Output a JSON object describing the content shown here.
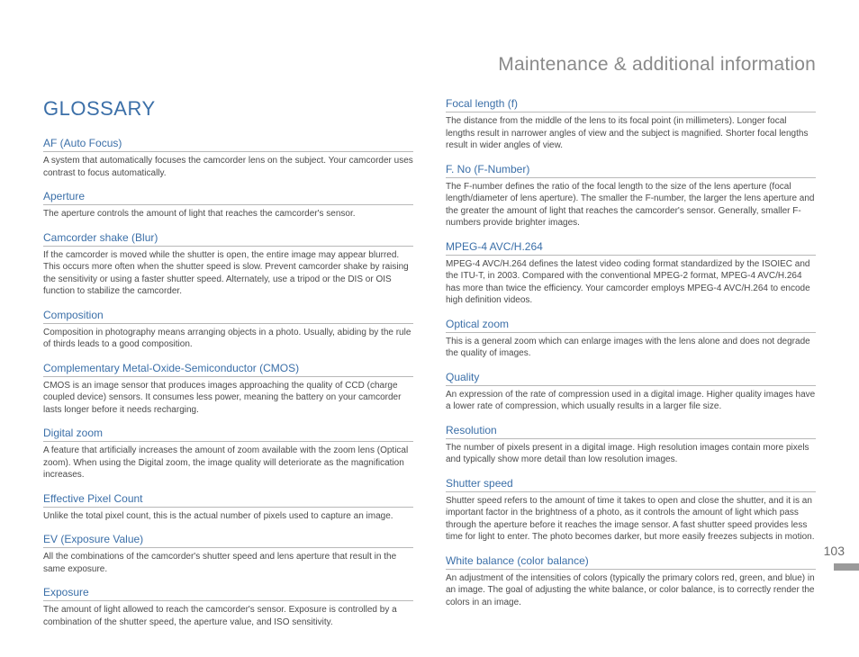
{
  "header_title": "Maintenance & additional information",
  "section_title": "GLOSSARY",
  "page_number": "103",
  "left_entries": [
    {
      "term": "AF (Auto Focus)",
      "def": "A system that automatically focuses the camcorder lens on the subject. Your camcorder uses contrast to focus automatically."
    },
    {
      "term": "Aperture",
      "def": "The aperture controls the amount of light that reaches the camcorder's sensor."
    },
    {
      "term": "Camcorder shake (Blur)",
      "def": "If the camcorder is moved while the shutter is open, the entire image may appear blurred. This occurs more often when the shutter speed is slow. Prevent camcorder shake by raising the sensitivity or using a faster shutter speed. Alternately, use a tripod or the DIS or OIS function to stabilize the camcorder."
    },
    {
      "term": "Composition",
      "def": "Composition in photography means arranging objects in a photo. Usually, abiding by the rule of thirds leads to a good composition."
    },
    {
      "term": "Complementary Metal-Oxide-Semiconductor (CMOS)",
      "def": "CMOS is an image sensor that produces images approaching the quality of CCD (charge coupled device) sensors. It consumes less power, meaning the battery on your camcorder lasts longer before it needs recharging."
    },
    {
      "term": "Digital zoom",
      "def": "A feature that artificially increases the amount of zoom available with the zoom lens (Optical zoom). When using the Digital zoom, the image quality will deteriorate as the magnification increases."
    },
    {
      "term": "Effective Pixel Count",
      "def": "Unlike the total pixel count, this is the actual number of pixels used to capture an image."
    },
    {
      "term": "EV (Exposure Value)",
      "def": "All the combinations of the camcorder's shutter speed and lens aperture that result in the same exposure."
    },
    {
      "term": "Exposure",
      "def": "The amount of light allowed to reach the camcorder's sensor. Exposure is controlled by a combination of the shutter speed, the aperture value, and ISO sensitivity."
    }
  ],
  "right_entries": [
    {
      "term": "Focal length (f)",
      "def": "The distance from the middle of the lens to its focal point (in millimeters). Longer focal lengths result in narrower angles of view and the subject is magnified. Shorter focal lengths result in wider angles of view."
    },
    {
      "term": "F. No (F-Number)",
      "def": "The F-number defines the ratio of the focal length to the size of the lens aperture (focal length/diameter of lens aperture). The smaller the F-number, the larger the lens aperture and the greater the amount of light that reaches the camcorder's sensor. Generally, smaller F-numbers provide brighter images."
    },
    {
      "term": "MPEG-4 AVC/H.264",
      "def": "MPEG-4 AVC/H.264 defines the latest video coding format standardized by the ISOIEC and the ITU-T, in 2003. Compared with the conventional MPEG-2 format, MPEG-4 AVC/H.264 has more than twice the efficiency. Your camcorder employs MPEG-4 AVC/H.264 to encode high definition videos."
    },
    {
      "term": "Optical zoom",
      "def": "This is a general zoom which can enlarge images with the lens alone and does not degrade the quality of images."
    },
    {
      "term": "Quality",
      "def": "An expression of the rate of compression used in a digital image. Higher quality images have a lower rate of compression, which usually results in a larger file size."
    },
    {
      "term": "Resolution",
      "def": "The number of pixels present in a digital image. High resolution images contain more pixels and typically show more detail than low resolution images."
    },
    {
      "term": "Shutter speed",
      "def": "Shutter speed refers to the amount of time it takes to open and close the shutter, and it is an important factor in the brightness of a photo, as it controls the amount of light which pass through the aperture before it reaches the image sensor. A fast shutter speed provides less time for light to enter. The photo becomes darker, but more easily freezes subjects in motion."
    },
    {
      "term": "White balance (color balance)",
      "def": "An adjustment of the intensities of colors (typically the primary colors red, green, and blue) in an image. The goal of adjusting the white balance, or color balance, is to correctly render the colors in an image."
    }
  ]
}
